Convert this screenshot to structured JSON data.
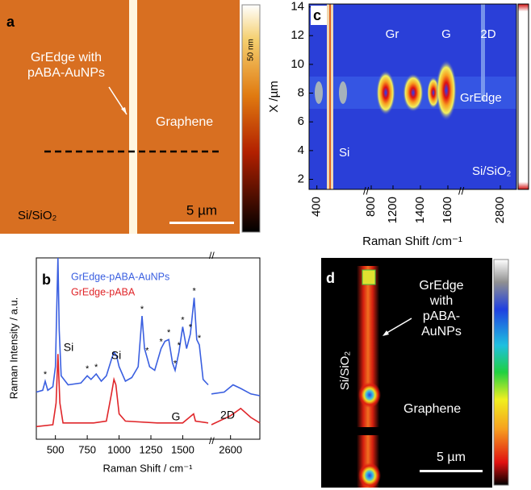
{
  "chart_data": [
    {
      "type": "image",
      "panel": "a",
      "annotation_lines": [
        "GrEdge with",
        "pABA-AuNPs"
      ],
      "region_labels": [
        "Graphene",
        "Si/SiO₂"
      ],
      "scale_bar": "5 µm",
      "colorbar_label": "50 nm"
    },
    {
      "type": "line",
      "panel": "b",
      "xlabel": "Raman Shift / cm⁻¹",
      "ylabel": "Raman Intensity / a.u.",
      "xsegments": [
        [
          350,
          1700
        ],
        [
          2450,
          2830
        ]
      ],
      "ylim": [
        0,
        100
      ],
      "xticks": [
        500,
        750,
        1000,
        1250,
        1500,
        2600
      ],
      "legend": "top-left",
      "series": [
        {
          "name": "GrEdge-pABA-AuNPs",
          "color": "#3a5fe0",
          "x": [
            350,
            400,
            420,
            440,
            480,
            500,
            510,
            520,
            530,
            545,
            600,
            700,
            750,
            780,
            820,
            860,
            900,
            940,
            960,
            980,
            1000,
            1050,
            1100,
            1150,
            1180,
            1200,
            1220,
            1240,
            1280,
            1330,
            1360,
            1390,
            1420,
            1440,
            1470,
            1500,
            1530,
            1560,
            1590,
            1610,
            1630,
            1660,
            1700,
            null,
            2450,
            2550,
            2620,
            2680,
            2760,
            2830
          ],
          "values": [
            26,
            27,
            32,
            27,
            29,
            40,
            70,
            100,
            60,
            35,
            30,
            31,
            35,
            33,
            36,
            32,
            35,
            44,
            48,
            46,
            40,
            32,
            34,
            40,
            68,
            50,
            45,
            40,
            38,
            50,
            54,
            55,
            42,
            38,
            48,
            62,
            50,
            58,
            78,
            55,
            52,
            33,
            30,
            null,
            25,
            26,
            30,
            28,
            25,
            24
          ]
        },
        {
          "name": "GrEdge-pABA",
          "color": "#e0262a",
          "x": [
            350,
            480,
            505,
            520,
            535,
            560,
            800,
            900,
            940,
            960,
            975,
            1000,
            1050,
            1300,
            1500,
            1585,
            1600,
            1700,
            null,
            2450,
            2600,
            2680,
            2760,
            2830
          ],
          "values": [
            7,
            8,
            20,
            47,
            20,
            9,
            9,
            10,
            25,
            33,
            30,
            14,
            10,
            9,
            9,
            14,
            10,
            9,
            null,
            8,
            13,
            17,
            12,
            9
          ]
        }
      ],
      "annotations": [
        "Si",
        "Si",
        "G",
        "2D"
      ],
      "peak_marker": "*",
      "marked_peaks": [
        420,
        750,
        820,
        1180,
        1220,
        1330,
        1390,
        1440,
        1470,
        1500,
        1560,
        1590,
        1630
      ]
    },
    {
      "type": "heatmap",
      "panel": "c",
      "xlabel": "Raman Shift /cm⁻¹",
      "ylabel": "X /µm",
      "ylim": [
        1.3,
        14.2
      ],
      "yticks": [
        2,
        4,
        6,
        8,
        10,
        12,
        14
      ],
      "xsegments": [
        [
          350,
          500
        ],
        [
          750,
          850
        ],
        [
          1100,
          1700
        ],
        [
          2700,
          2900
        ]
      ],
      "xticks": [
        400,
        800,
        1200,
        1400,
        1600,
        2800
      ],
      "labels": [
        "Gr",
        "G",
        "2D",
        "GrEdge",
        "Si",
        "Si/SiO₂"
      ]
    },
    {
      "type": "image",
      "panel": "d",
      "annotation_lines": [
        "GrEdge",
        "with",
        "pABA-",
        "AuNPs"
      ],
      "region_labels": [
        "Si/SiO₂",
        "Graphene"
      ],
      "scale_bar": "5 µm"
    }
  ]
}
